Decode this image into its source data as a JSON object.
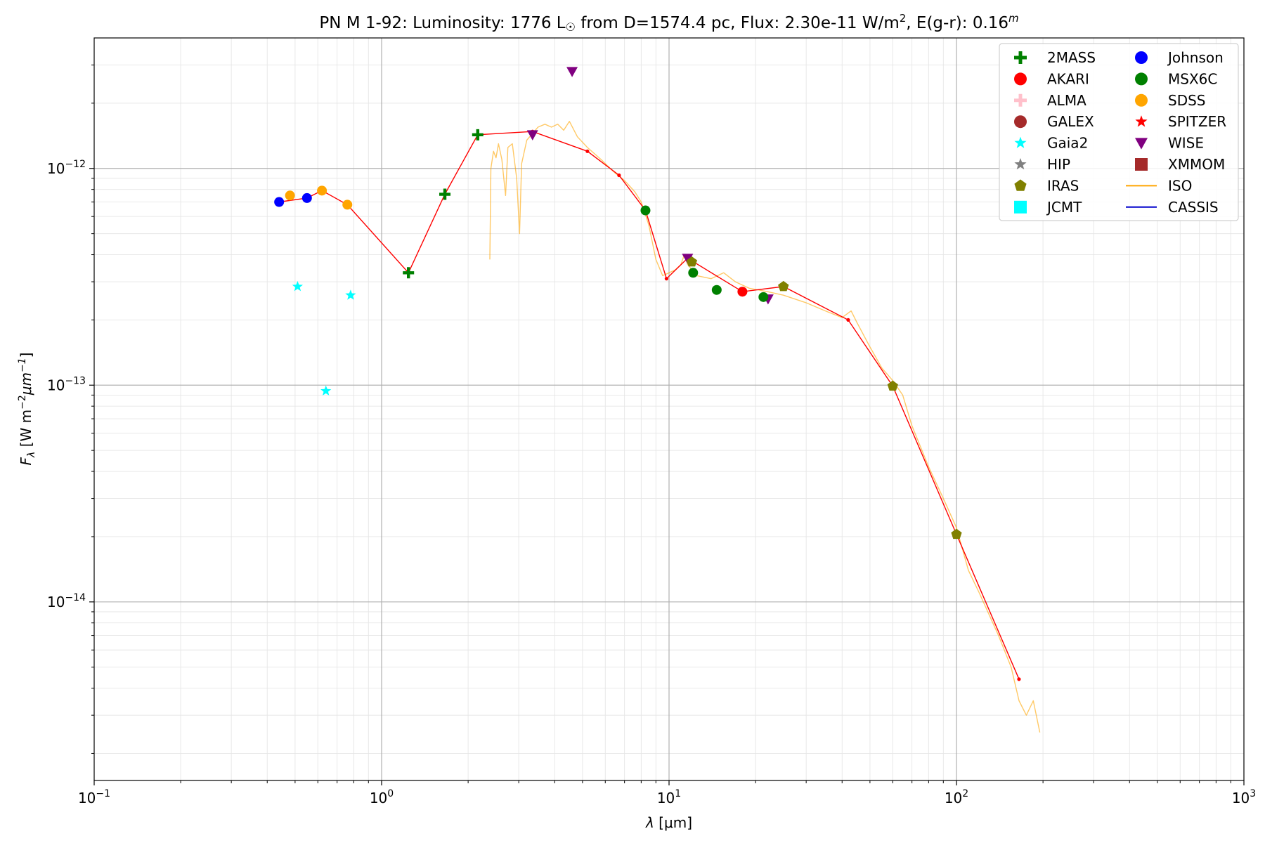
{
  "chart_data": {
    "type": "scatter",
    "title": {
      "prefix": "PN M 1-92:  Luminosity: 1776 L",
      "sun_symbol": "☉",
      "middle": " from D=1574.4 pc, Flux: 2.30e-11 W/m",
      "flux_exp": "2",
      "ebv_label": ", E(g-r): 0.16",
      "ebv_unit": "m"
    },
    "xlabel": {
      "symbol": "λ",
      "unit": " [μm]"
    },
    "ylabel": {
      "F": "F",
      "sub": "λ",
      "units": " [W m",
      "m2": "−2",
      "mu": "μm",
      "m1": "−1",
      "close": "]"
    },
    "xscale": "log",
    "yscale": "log",
    "xlim": [
      0.1,
      1000
    ],
    "ylim": [
      1.5e-15,
      4e-12
    ],
    "grid": true,
    "x_ticks": [
      {
        "value": 0.1,
        "base": "10",
        "exp": "−1"
      },
      {
        "value": 1,
        "base": "10",
        "exp": "0"
      },
      {
        "value": 10,
        "base": "10",
        "exp": "1"
      },
      {
        "value": 100,
        "base": "10",
        "exp": "2"
      },
      {
        "value": 1000,
        "base": "10",
        "exp": "3"
      }
    ],
    "y_ticks": [
      {
        "value": 1e-14,
        "base": "10",
        "exp": "−14"
      },
      {
        "value": 1e-13,
        "base": "10",
        "exp": "−13"
      },
      {
        "value": 1e-12,
        "base": "10",
        "exp": "−12"
      }
    ],
    "legend_position": "top-right",
    "legend": [
      {
        "name": "2MASS",
        "color": "#008000",
        "marker": "plus"
      },
      {
        "name": "AKARI",
        "color": "#ff0000",
        "marker": "circle"
      },
      {
        "name": "ALMA",
        "color": "#ffc0cb",
        "marker": "plus"
      },
      {
        "name": "GALEX",
        "color": "#a52a2a",
        "marker": "circle"
      },
      {
        "name": "Gaia2",
        "color": "#00ffff",
        "marker": "star"
      },
      {
        "name": "HIP",
        "color": "#808080",
        "marker": "star"
      },
      {
        "name": "IRAS",
        "color": "#808000",
        "marker": "pentagon"
      },
      {
        "name": "JCMT",
        "color": "#00ffff",
        "marker": "square"
      },
      {
        "name": "Johnson",
        "color": "#0000ff",
        "marker": "circle"
      },
      {
        "name": "MSX6C",
        "color": "#008000",
        "marker": "circle"
      },
      {
        "name": "SDSS",
        "color": "#ffa500",
        "marker": "circle"
      },
      {
        "name": "SPITZER",
        "color": "#ff0000",
        "marker": "star"
      },
      {
        "name": "WISE",
        "color": "#800080",
        "marker": "triangle-down"
      },
      {
        "name": "XMMOM",
        "color": "#a52a2a",
        "marker": "square"
      },
      {
        "name": "ISO",
        "color": "#ffa500",
        "marker": "line"
      },
      {
        "name": "CASSIS",
        "color": "#0000cc",
        "marker": "line"
      }
    ],
    "series": [
      {
        "name": "Johnson",
        "color": "#0000ff",
        "marker": "circle",
        "points": [
          [
            0.44,
            7e-13
          ],
          [
            0.55,
            7.3e-13
          ]
        ]
      },
      {
        "name": "SDSS",
        "color": "#ffa500",
        "marker": "circle",
        "points": [
          [
            0.48,
            7.5e-13
          ],
          [
            0.62,
            7.9e-13
          ],
          [
            0.76,
            6.8e-13
          ]
        ]
      },
      {
        "name": "Gaia2",
        "color": "#00ffff",
        "marker": "star",
        "points": [
          [
            0.51,
            2.85e-13
          ],
          [
            0.64,
            9.4e-14
          ],
          [
            0.78,
            2.6e-13
          ]
        ]
      },
      {
        "name": "2MASS",
        "color": "#008000",
        "marker": "plus",
        "points": [
          [
            1.24,
            3.3e-13
          ],
          [
            1.66,
            7.6e-13
          ],
          [
            2.16,
            1.43e-12
          ]
        ]
      },
      {
        "name": "WISE",
        "color": "#800080",
        "marker": "triangle-down",
        "points": [
          [
            3.35,
            1.43e-12
          ],
          [
            4.6,
            2.8e-12
          ],
          [
            11.6,
            3.85e-13
          ],
          [
            22.1,
            2.5e-13
          ]
        ]
      },
      {
        "name": "MSX6C",
        "color": "#008000",
        "marker": "circle",
        "points": [
          [
            8.28,
            6.4e-13
          ],
          [
            12.13,
            3.3e-13
          ],
          [
            14.65,
            2.75e-13
          ],
          [
            21.3,
            2.55e-13
          ]
        ]
      },
      {
        "name": "AKARI",
        "color": "#ff0000",
        "marker": "circle",
        "points": [
          [
            18.0,
            2.7e-13
          ]
        ]
      },
      {
        "name": "IRAS",
        "color": "#808000",
        "marker": "pentagon",
        "points": [
          [
            12.0,
            3.7e-13
          ],
          [
            25.0,
            2.85e-13
          ],
          [
            60.0,
            9.9e-14
          ],
          [
            100.0,
            2.05e-14
          ]
        ]
      }
    ],
    "sed_line": {
      "color": "#ff0000",
      "points": [
        [
          0.44,
          7e-13
        ],
        [
          0.55,
          7.3e-13
        ],
        [
          0.62,
          7.9e-13
        ],
        [
          0.76,
          6.8e-13
        ],
        [
          1.24,
          3.3e-13
        ],
        [
          1.66,
          7.6e-13
        ],
        [
          2.16,
          1.43e-12
        ],
        [
          3.35,
          1.48e-12
        ],
        [
          5.2,
          1.2e-12
        ],
        [
          6.7,
          9.3e-13
        ],
        [
          8.28,
          6.4e-13
        ],
        [
          9.8,
          3.1e-13
        ],
        [
          11.6,
          3.85e-13
        ],
        [
          18.0,
          2.7e-13
        ],
        [
          25.0,
          2.85e-13
        ],
        [
          42.0,
          2e-13
        ],
        [
          60.0,
          9.9e-14
        ],
        [
          100.0,
          2.05e-14
        ],
        [
          165.0,
          4.4e-15
        ]
      ]
    },
    "iso_spectrum": {
      "name": "ISO",
      "color": "#ffa500",
      "points": [
        [
          2.38,
          3.8e-13
        ],
        [
          2.4,
          1e-12
        ],
        [
          2.45,
          1.2e-12
        ],
        [
          2.5,
          1.12e-12
        ],
        [
          2.55,
          1.3e-12
        ],
        [
          2.62,
          1.1e-12
        ],
        [
          2.7,
          7.5e-13
        ],
        [
          2.75,
          1.25e-12
        ],
        [
          2.85,
          1.3e-12
        ],
        [
          2.95,
          9e-13
        ],
        [
          3.02,
          5e-13
        ],
        [
          3.07,
          1.05e-12
        ],
        [
          3.2,
          1.35e-12
        ],
        [
          3.35,
          1.45e-12
        ],
        [
          3.5,
          1.55e-12
        ],
        [
          3.7,
          1.6e-12
        ],
        [
          3.9,
          1.55e-12
        ],
        [
          4.1,
          1.6e-12
        ],
        [
          4.3,
          1.5e-12
        ],
        [
          4.5,
          1.65e-12
        ],
        [
          4.8,
          1.4e-12
        ],
        [
          5.2,
          1.25e-12
        ],
        [
          5.8,
          1.1e-12
        ],
        [
          6.5,
          9.5e-13
        ],
        [
          7.0,
          8.8e-13
        ],
        [
          7.6,
          7.8e-13
        ],
        [
          8.0,
          7e-13
        ],
        [
          8.5,
          5.5e-13
        ],
        [
          9.0,
          3.8e-13
        ],
        [
          9.5,
          3.2e-13
        ],
        [
          10.0,
          3.3e-13
        ],
        [
          10.5,
          3.4e-13
        ],
        [
          11.0,
          3.6e-13
        ],
        [
          11.3,
          4e-13
        ],
        [
          11.6,
          3.6e-13
        ],
        [
          12.5,
          3.2e-13
        ],
        [
          14.0,
          3.1e-13
        ],
        [
          15.5,
          3.3e-13
        ],
        [
          17.0,
          3e-13
        ],
        [
          19.0,
          2.8e-13
        ],
        [
          22.0,
          2.7e-13
        ],
        [
          25.0,
          2.6e-13
        ],
        [
          30.0,
          2.4e-13
        ],
        [
          35.0,
          2.2e-13
        ],
        [
          40.0,
          2.05e-13
        ],
        [
          43.0,
          2.2e-13
        ],
        [
          45.0,
          1.95e-13
        ],
        [
          50.0,
          1.5e-13
        ],
        [
          55.0,
          1.2e-13
        ],
        [
          60.0,
          1.05e-13
        ],
        [
          65.0,
          9e-14
        ],
        [
          70.0,
          6.5e-14
        ],
        [
          80.0,
          4.2e-14
        ],
        [
          90.0,
          3e-14
        ],
        [
          100.0,
          2.2e-14
        ],
        [
          110.0,
          1.4e-14
        ],
        [
          120.0,
          1.1e-14
        ],
        [
          140.0,
          7e-15
        ],
        [
          155.0,
          5e-15
        ],
        [
          165.0,
          3.5e-15
        ],
        [
          175.0,
          3e-15
        ],
        [
          185.0,
          3.5e-15
        ],
        [
          195.0,
          2.5e-15
        ]
      ]
    }
  }
}
